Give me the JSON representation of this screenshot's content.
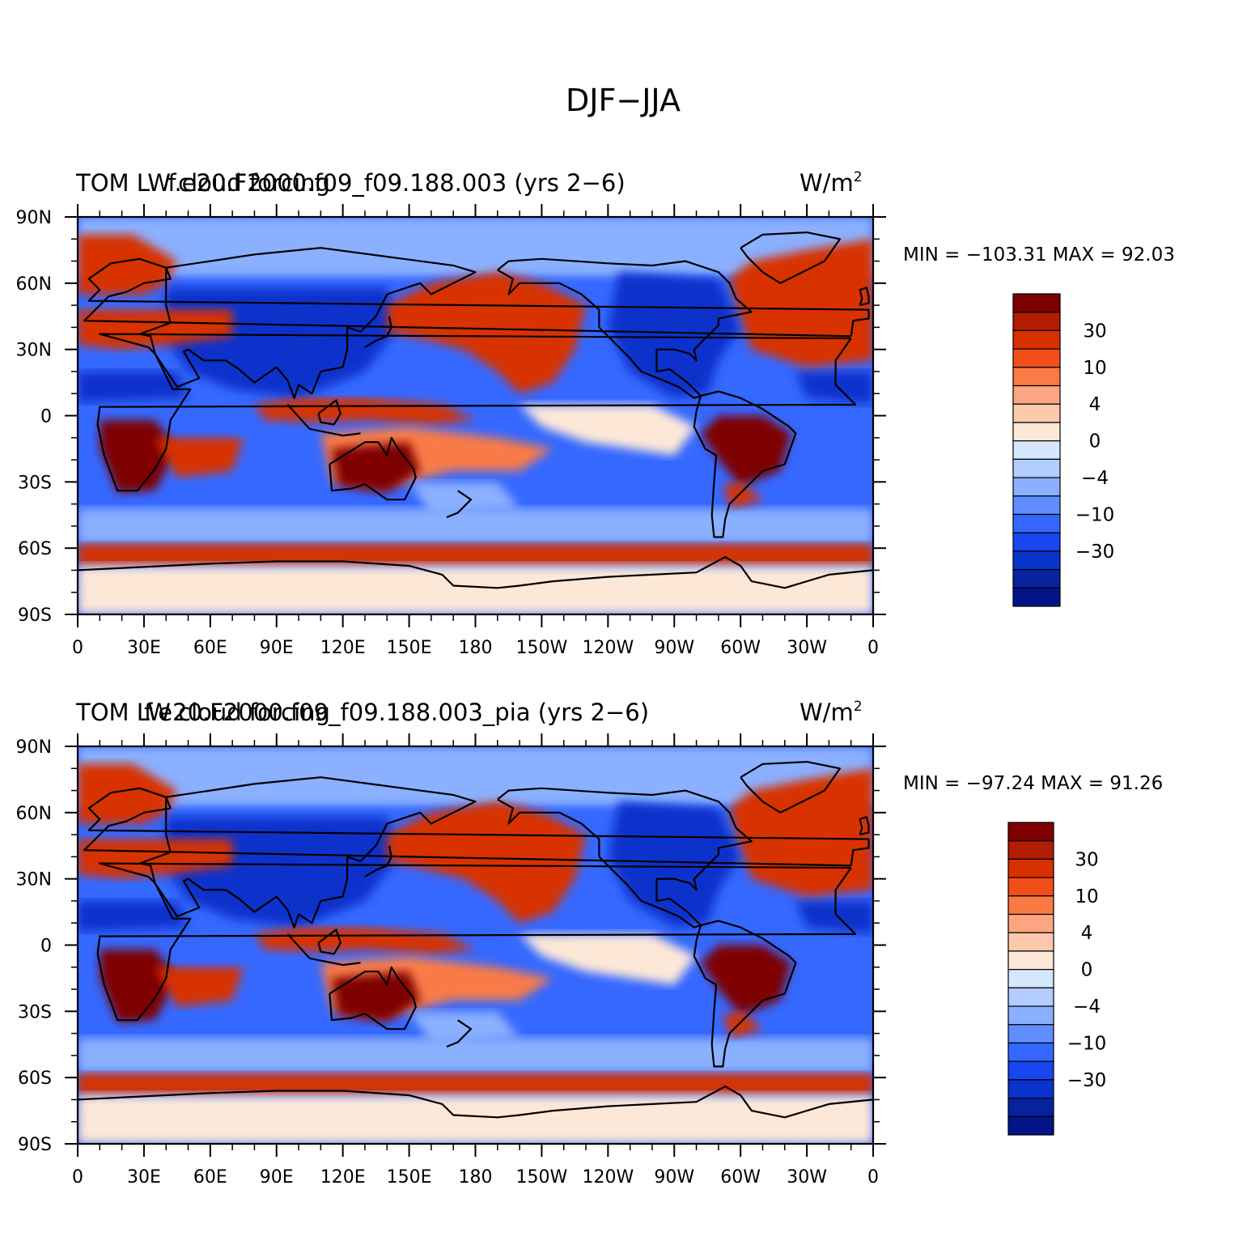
{
  "figure": {
    "title": "DJF−JJA"
  },
  "panels": [
    {
      "id": "top",
      "title_left": "TOM LW cloud forcing",
      "title_center": "f.e20.F2000.f09_f09.188.003 (yrs 2−6)",
      "units": "W/m",
      "units_sup": "2",
      "min_max": "MIN = −103.31  MAX =   92.03"
    },
    {
      "id": "bottom",
      "title_left": "TOM LW cloud forcing",
      "title_center": "f.e20.F2000.f09_f09.188.003_pia (yrs 2−6)",
      "units": "W/m",
      "units_sup": "2",
      "min_max": "MIN = −97.24  MAX =   91.26"
    }
  ],
  "axes": {
    "lon_labels": [
      "0",
      "30E",
      "60E",
      "90E",
      "120E",
      "150E",
      "180",
      "150W",
      "120W",
      "90W",
      "60W",
      "30W",
      "0"
    ],
    "lat_labels": [
      "90N",
      "60N",
      "30N",
      "0",
      "30S",
      "60S",
      "90S"
    ]
  },
  "colorbar": {
    "labels": [
      "30",
      "10",
      "4",
      "0",
      "−4",
      "−10",
      "−30"
    ],
    "colors": [
      "#7f0000",
      "#b21c00",
      "#d83000",
      "#f24e1a",
      "#fa7a46",
      "#fca580",
      "#fdc9ad",
      "#fde8d8",
      "#d6e8ff",
      "#b2cdff",
      "#8bb0ff",
      "#5f8cff",
      "#3467ff",
      "#1846f0",
      "#0a33cc",
      "#06229e",
      "#021488"
    ]
  },
  "map_colors": {
    "deep_red": "#7f0000",
    "red": "#d83000",
    "light_red": "#fa7a46",
    "pale": "#fde8d8",
    "light_blue": "#8bb0ff",
    "blue": "#3467ff",
    "deep_blue": "#0a33cc"
  }
}
